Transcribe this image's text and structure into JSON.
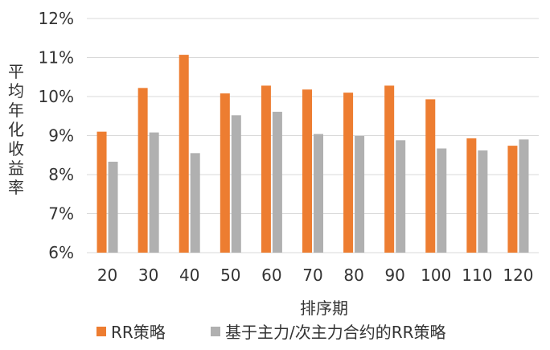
{
  "chart_data": {
    "type": "bar",
    "xlabel": "排序期",
    "ylabel": "平均年化收益率",
    "categories": [
      "20",
      "30",
      "40",
      "50",
      "60",
      "70",
      "80",
      "90",
      "100",
      "110",
      "120"
    ],
    "ylim": [
      6,
      12
    ],
    "yticks": [
      6,
      7,
      8,
      9,
      10,
      11,
      12
    ],
    "ytick_labels": [
      "6%",
      "7%",
      "8%",
      "9%",
      "10%",
      "11%",
      "12%"
    ],
    "grid": true,
    "legend_position": "bottom",
    "series": [
      {
        "name": "RR策略",
        "color": "#ed7d31",
        "values": [
          9.1,
          10.22,
          11.07,
          10.08,
          10.28,
          10.18,
          10.1,
          10.28,
          9.93,
          8.93,
          8.74
        ]
      },
      {
        "name": "基于主力/次主力合约的RR策略",
        "color": "#b0b0b0",
        "values": [
          8.33,
          9.08,
          8.55,
          9.52,
          9.61,
          9.04,
          8.99,
          8.88,
          8.67,
          8.62,
          8.9
        ]
      }
    ]
  }
}
